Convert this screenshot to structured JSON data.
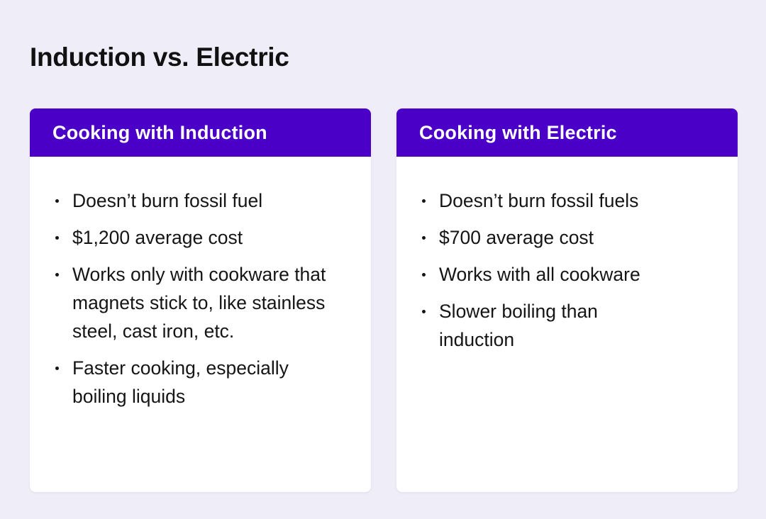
{
  "title": "Induction vs. Electric",
  "colors": {
    "background": "#efedf8",
    "header": "#4b00c8",
    "card": "#ffffff"
  },
  "cards": [
    {
      "heading": "Cooking with Induction",
      "items": [
        "Doesn’t burn fossil fuel",
        "$1,200 average cost",
        "Works only with cookware that magnets stick to, like stainless steel, cast iron, etc.",
        "Faster cooking, especially boiling liquids"
      ]
    },
    {
      "heading": "Cooking with Electric",
      "items": [
        "Doesn’t burn fossil fuels",
        "$700 average cost",
        "Works with all cookware",
        "Slower boiling than induction"
      ]
    }
  ]
}
